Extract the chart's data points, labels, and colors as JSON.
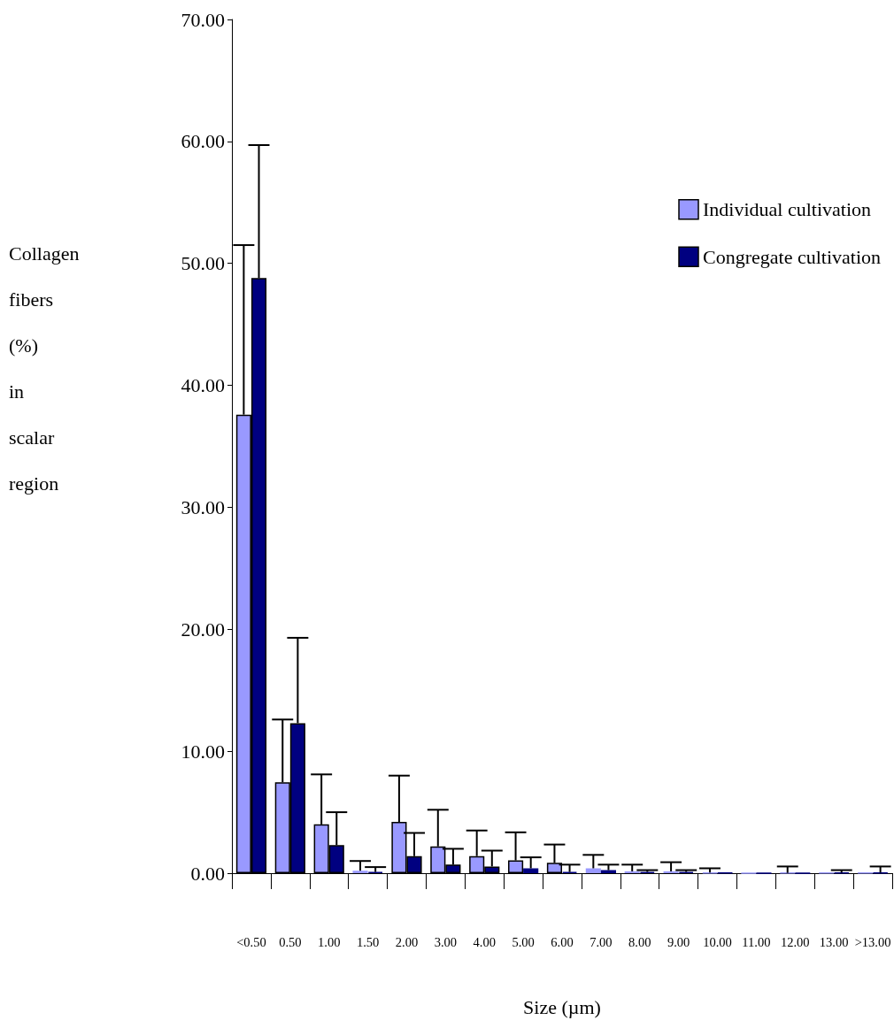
{
  "chart_data": {
    "type": "bar",
    "xlabel": "Size (µm)",
    "ylabel": "Collagen\nfibers\n(%)\nin\nscalar\nregion",
    "categories": [
      "<0.50",
      "0.50",
      "1.00",
      "1.50",
      "2.00",
      "3.00",
      "4.00",
      "5.00",
      "6.00",
      "7.00",
      "8.00",
      "9.00",
      "10.00",
      "11.00",
      "12.00",
      "13.00",
      ">13.00"
    ],
    "series": [
      {
        "name": "Individual cultivation",
        "color": "#9999ff",
        "values": [
          37.6,
          7.45,
          4.0,
          0.2,
          4.2,
          2.2,
          1.4,
          1.05,
          0.85,
          0.4,
          0.15,
          0.15,
          0.05,
          0,
          0.02,
          0.03,
          0.02
        ],
        "errors": [
          [
            37.6,
            51.5
          ],
          [
            7.45,
            12.6
          ],
          [
            4.0,
            8.1
          ],
          [
            0.2,
            1.0
          ],
          [
            4.2,
            8.0
          ],
          [
            2.2,
            5.2
          ],
          [
            1.4,
            3.5
          ],
          [
            1.05,
            3.35
          ],
          [
            0.85,
            2.35
          ],
          [
            0.4,
            1.5
          ],
          [
            0.15,
            0.7
          ],
          [
            0.15,
            0.9
          ],
          [
            0.05,
            0.4
          ],
          null,
          [
            0.02,
            0.55
          ],
          null,
          null
        ]
      },
      {
        "name": "Congregate cultivation",
        "color": "#000080",
        "values": [
          48.8,
          12.3,
          2.3,
          0.1,
          1.4,
          0.7,
          0.55,
          0.4,
          0.1,
          0.25,
          0.1,
          0.1,
          0.02,
          0,
          0.01,
          0.05,
          0.05
        ],
        "errors": [
          [
            48.8,
            59.7
          ],
          [
            12.3,
            19.3
          ],
          [
            2.3,
            5.0
          ],
          [
            0.1,
            0.5
          ],
          [
            1.4,
            3.3
          ],
          [
            0.7,
            2.0
          ],
          [
            0.55,
            1.85
          ],
          [
            0.4,
            1.3
          ],
          [
            0.1,
            0.7
          ],
          [
            0.25,
            0.7
          ],
          [
            0.1,
            0.25
          ],
          [
            0.1,
            0.25
          ],
          null,
          null,
          null,
          [
            0.05,
            0.25
          ],
          [
            0.05,
            0.55
          ]
        ]
      }
    ],
    "ylim": [
      0,
      70
    ],
    "yticks": [
      {
        "value": 0,
        "label": "0.00"
      },
      {
        "value": 10,
        "label": "10.00"
      },
      {
        "value": 20,
        "label": "20.00"
      },
      {
        "value": 30,
        "label": "30.00"
      },
      {
        "value": 40,
        "label": "40.00"
      },
      {
        "value": 50,
        "label": "50.00"
      },
      {
        "value": 60,
        "label": "60.00"
      },
      {
        "value": 70,
        "label": "70.00"
      }
    ],
    "grid": false,
    "legend": "right"
  }
}
